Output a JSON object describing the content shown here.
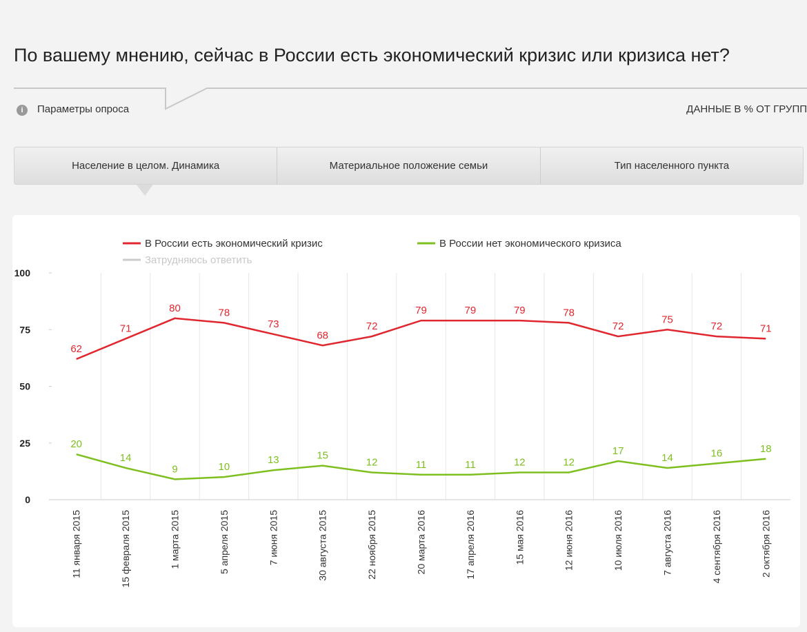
{
  "header": {
    "title": "По вашему мнению, сейчас в России есть экономический кризис или кризиса нет?",
    "params": "Параметры опроса",
    "data_note": "ДАННЫЕ В % ОТ ГРУПП"
  },
  "tabs": [
    "Население в целом. Динамика",
    "Материальное положение семьи",
    "Тип населенного пункта"
  ],
  "chart_data": {
    "type": "line",
    "categories": [
      "11 января 2015",
      "15 февраля 2015",
      "1 марта 2015",
      "5 апреля 2015",
      "7 июня 2015",
      "30 августа 2015",
      "22 ноября 2015",
      "20 марта 2016",
      "17 апреля 2016",
      "15 мая 2016",
      "12 июня 2016",
      "10 июля 2016",
      "7 августа 2016",
      "4 сентября 2016",
      "2 октября 2016"
    ],
    "series": [
      {
        "name": "В России есть экономический кризис",
        "color": "#e0262e",
        "values": [
          62,
          71,
          80,
          78,
          73,
          68,
          72,
          79,
          79,
          79,
          78,
          72,
          75,
          72,
          71
        ]
      },
      {
        "name": "В России нет экономического кризиса",
        "color": "#7dbf1e",
        "values": [
          20,
          14,
          9,
          10,
          13,
          15,
          12,
          11,
          11,
          12,
          12,
          17,
          14,
          16,
          18
        ]
      },
      {
        "name": "Затрудняюсь ответить",
        "color": "#cccccc",
        "visible": false,
        "values": [
          null,
          null,
          null,
          null,
          null,
          null,
          null,
          null,
          null,
          null,
          null,
          null,
          null,
          null,
          null
        ]
      }
    ],
    "ylim": [
      0,
      100
    ],
    "yticks": [
      0,
      25,
      50,
      75,
      100
    ]
  }
}
